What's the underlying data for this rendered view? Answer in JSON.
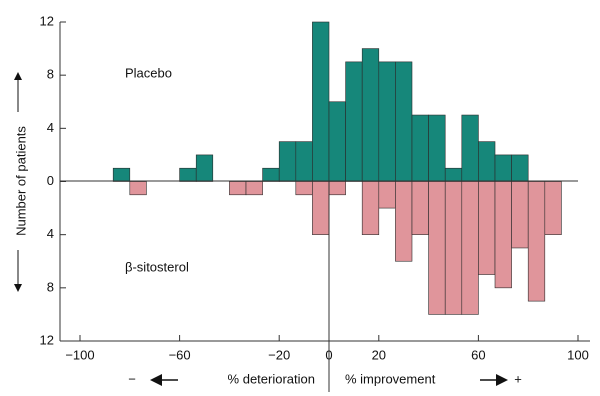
{
  "chart_data": {
    "type": "histogram",
    "bins": [
      -86.67,
      -80,
      -73.33,
      -66.67,
      -60,
      -53.33,
      -46.67,
      -40,
      -33.33,
      -26.67,
      -20,
      -13.33,
      -6.67,
      0,
      6.67,
      13.33,
      20,
      26.67,
      33.33,
      40,
      46.67,
      53.33,
      60,
      66.67,
      73.33,
      80,
      86.67,
      93.33
    ],
    "series": [
      {
        "name": "Placebo",
        "color": "#16877a",
        "values": [
          1,
          0,
          0,
          0,
          1,
          2,
          0,
          0,
          0,
          1,
          3,
          3,
          12,
          6,
          9,
          10,
          9,
          9,
          5,
          5,
          1,
          5,
          3,
          2,
          2,
          0,
          0
        ]
      },
      {
        "name": "β-sitosterol",
        "color": "#e0959b",
        "values": [
          0,
          -1,
          0,
          0,
          0,
          0,
          0,
          -1,
          -1,
          0,
          0,
          -1,
          -4,
          -1,
          0,
          -4,
          -2,
          -6,
          -4,
          -10,
          -10,
          -10,
          -7,
          -8,
          -5,
          -9,
          -4
        ]
      }
    ],
    "xlim": [
      -100,
      100
    ],
    "xticks": [
      {
        "value": -100,
        "label": "−100"
      },
      {
        "value": -60,
        "label": "−60"
      },
      {
        "value": -20,
        "label": "−20"
      },
      0,
      20,
      60,
      100
    ],
    "ylim": [
      -12,
      12
    ],
    "yticks": [
      12,
      8,
      4,
      0,
      {
        "value": -4,
        "label": "4"
      },
      {
        "value": -8,
        "label": "8"
      },
      {
        "value": -12,
        "label": "12"
      }
    ],
    "y_label": "Number of patients",
    "x_label_left": "% deterioration",
    "x_label_right": "% improvement",
    "x_sign_left": "−",
    "x_sign_right": "+"
  }
}
